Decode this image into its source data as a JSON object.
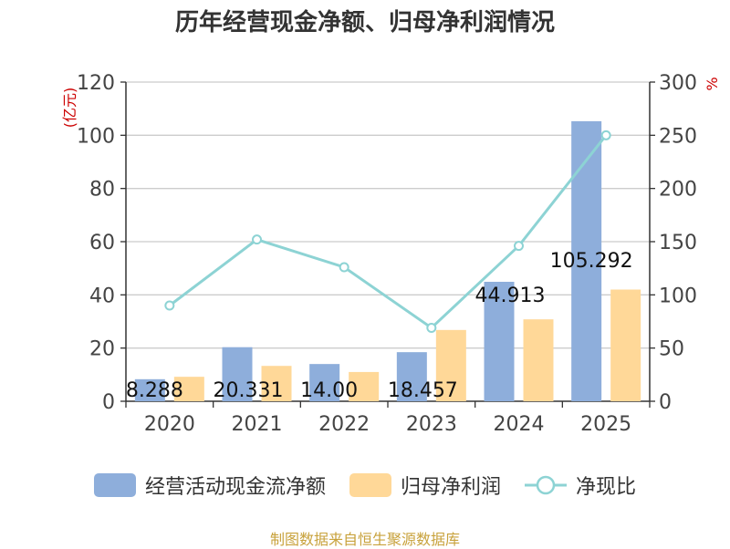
{
  "chart_data": {
    "type": "bar",
    "title": "历年经营现金净额、归母净利润情况",
    "categories": [
      "2020",
      "2021",
      "2022",
      "2023",
      "2024",
      "2025"
    ],
    "series": [
      {
        "name": "经营活动现金流净额",
        "type": "bar",
        "axis": "left",
        "color": "#8eaedb",
        "values": [
          8.288,
          20.331,
          14.004,
          18.457,
          44.913,
          105.292
        ],
        "labels": [
          "8.288",
          "20.331",
          "14.00",
          "18.457",
          "44.913",
          "105.292"
        ]
      },
      {
        "name": "归母净利润",
        "type": "bar",
        "axis": "left",
        "color": "#ffd898",
        "values": [
          9.2,
          13.3,
          11.0,
          26.8,
          30.8,
          42.0
        ]
      },
      {
        "name": "净现比",
        "type": "line",
        "axis": "right",
        "color": "#8dd3d4",
        "values": [
          90,
          152,
          126,
          69,
          146,
          250
        ]
      }
    ],
    "yLeft": {
      "label": "(亿元)",
      "min": 0,
      "max": 120,
      "ticks": [
        0,
        20,
        40,
        60,
        80,
        100,
        120
      ]
    },
    "yRight": {
      "label": "%",
      "min": 0,
      "max": 300,
      "ticks": [
        0,
        50,
        100,
        150,
        200,
        250,
        300
      ]
    },
    "grid": true,
    "legend_position": "bottom"
  },
  "legend": [
    {
      "label": "经营活动现金流净额",
      "kind": "bar",
      "color": "#8eaedb"
    },
    {
      "label": "归母净利润",
      "kind": "bar",
      "color": "#ffd898"
    },
    {
      "label": "净现比",
      "kind": "line",
      "color": "#8dd3d4"
    }
  ],
  "source": "制图数据来自恒生聚源数据库"
}
